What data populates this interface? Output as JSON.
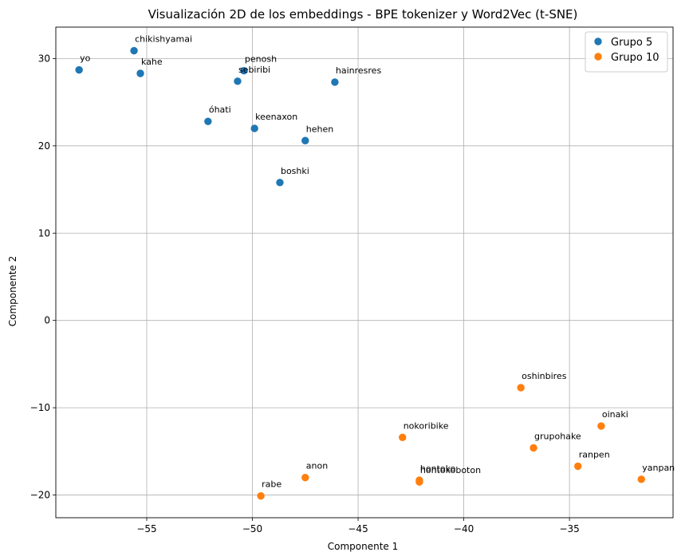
{
  "chart_data": {
    "type": "scatter",
    "title": "Visualización 2D de los embeddings - BPE tokenizer y Word2Vec (t-SNE)",
    "xlabel": "Componente 1",
    "ylabel": "Componente 2",
    "xlim": [
      -59.3,
      -30.1
    ],
    "ylim": [
      -22.6,
      33.6
    ],
    "xticks": [
      -55,
      -50,
      -45,
      -40,
      -35
    ],
    "yticks": [
      -20,
      -10,
      0,
      10,
      20,
      30
    ],
    "xtick_labels": [
      "−55",
      "−50",
      "−45",
      "−40",
      "−35"
    ],
    "ytick_labels": [
      "−20",
      "−10",
      "0",
      "10",
      "20",
      "30"
    ],
    "grid": true,
    "legend_position": "top-right",
    "series": [
      {
        "name": "Grupo 5",
        "color": "#1f77b4",
        "points": [
          {
            "label": "yo",
            "x": -58.2,
            "y": 28.7
          },
          {
            "label": "chikishyamai",
            "x": -55.6,
            "y": 30.9
          },
          {
            "label": "kahe",
            "x": -55.3,
            "y": 28.3
          },
          {
            "label": "sebiribi",
            "x": -50.7,
            "y": 27.4
          },
          {
            "label": "penosh",
            "x": -50.4,
            "y": 28.6
          },
          {
            "label": "hainresres",
            "x": -46.1,
            "y": 27.3
          },
          {
            "label": "óhati",
            "x": -52.1,
            "y": 22.8
          },
          {
            "label": "keenaxon",
            "x": -49.9,
            "y": 22.0
          },
          {
            "label": "hehen",
            "x": -47.5,
            "y": 20.6
          },
          {
            "label": "boshki",
            "x": -48.7,
            "y": 15.8
          }
        ]
      },
      {
        "name": "Grupo 10",
        "color": "#ff7f0e",
        "points": [
          {
            "label": "oshinbires",
            "x": -37.3,
            "y": -7.7
          },
          {
            "label": "nokoribike",
            "x": -42.9,
            "y": -13.4
          },
          {
            "label": "oinaki",
            "x": -33.5,
            "y": -12.1
          },
          {
            "label": "grupohake",
            "x": -36.7,
            "y": -14.6
          },
          {
            "label": "ranpen",
            "x": -34.6,
            "y": -16.7
          },
          {
            "label": "yanpan",
            "x": -31.6,
            "y": -18.2
          },
          {
            "label": "anon",
            "x": -47.5,
            "y": -18.0
          },
          {
            "label": "hontoko",
            "x": -42.1,
            "y": -18.3
          },
          {
            "label": "hontokoboton",
            "x": -42.1,
            "y": -18.5
          },
          {
            "label": "rabe",
            "x": -49.6,
            "y": -20.1
          }
        ]
      }
    ]
  }
}
